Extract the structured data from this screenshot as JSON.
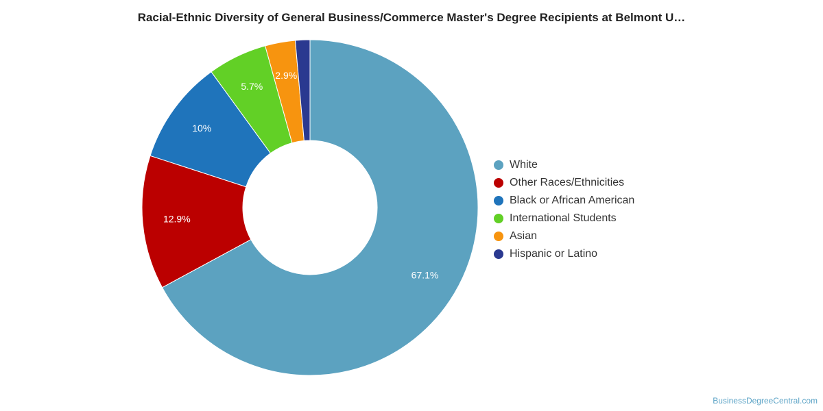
{
  "chart_data": {
    "type": "pie",
    "title": "Racial-Ethnic Diversity of General Business/Commerce Master's Degree Recipients at Belmont U…",
    "donut": true,
    "legend_position": "right",
    "slices": [
      {
        "label": "White",
        "value": 67.1,
        "data_label": "67.1%",
        "color": "#5ca2c0"
      },
      {
        "label": "Other Races/Ethnicities",
        "value": 12.9,
        "data_label": "12.9%",
        "color": "#bb0000"
      },
      {
        "label": "Black or African American",
        "value": 10.0,
        "data_label": "10%",
        "color": "#1f74bb"
      },
      {
        "label": "International Students",
        "value": 5.7,
        "data_label": "5.7%",
        "color": "#62d026"
      },
      {
        "label": "Asian",
        "value": 2.9,
        "data_label": "2.9%",
        "color": "#f7940f"
      },
      {
        "label": "Hispanic or Latino",
        "value": 1.4,
        "data_label": "",
        "color": "#2a3990"
      }
    ]
  },
  "source": "BusinessDegreeCentral.com"
}
